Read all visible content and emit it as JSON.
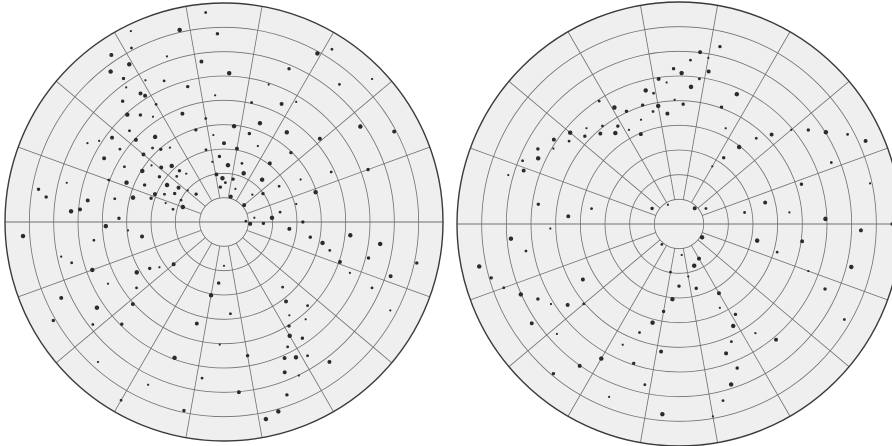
{
  "colors": {
    "background": "#ffffff",
    "disk": "#efefef",
    "grid": "#6f6f6f",
    "outline": "#3a3a3a",
    "point": "#2b2b2b"
  },
  "chart_data": [
    {
      "type": "scatter",
      "projection": "polar",
      "hemisphere": "left",
      "grid": true,
      "rings": 9,
      "meridians": 18,
      "points": [
        [
          128,
          0.28
        ],
        [
          131,
          0.31
        ],
        [
          133,
          0.35
        ],
        [
          136,
          0.3
        ],
        [
          139,
          0.38
        ],
        [
          126,
          0.42
        ],
        [
          131,
          0.44
        ],
        [
          129,
          0.5
        ],
        [
          134,
          0.47
        ],
        [
          137,
          0.55
        ],
        [
          124,
          0.58
        ],
        [
          128,
          0.62
        ],
        [
          132,
          0.66
        ],
        [
          136,
          0.6
        ],
        [
          140,
          0.48
        ],
        [
          142,
          0.42
        ],
        [
          145,
          0.36
        ],
        [
          148,
          0.44
        ],
        [
          151,
          0.52
        ],
        [
          123,
          0.7
        ],
        [
          126,
          0.76
        ],
        [
          130,
          0.72
        ],
        [
          121,
          0.84
        ],
        [
          118,
          0.9
        ],
        [
          124,
          0.92
        ],
        [
          116,
          0.97
        ],
        [
          155,
          0.4
        ],
        [
          158,
          0.48
        ],
        [
          160,
          0.56
        ],
        [
          152,
          0.62
        ],
        [
          147,
          0.68
        ],
        [
          162,
          0.35
        ],
        [
          165,
          0.43
        ],
        [
          168,
          0.51
        ],
        [
          171,
          0.63
        ],
        [
          166,
          0.74
        ],
        [
          172,
          0.82
        ],
        [
          176,
          0.7
        ],
        [
          120,
          0.62
        ],
        [
          122,
          0.68
        ],
        [
          119,
          0.74
        ],
        [
          125,
          0.8
        ],
        [
          127,
          0.86
        ],
        [
          145,
          0.58
        ],
        [
          143,
          0.64
        ],
        [
          150,
          0.72
        ],
        [
          96,
          0.16
        ],
        [
          92,
          0.2
        ],
        [
          88,
          0.18
        ],
        [
          99,
          0.22
        ],
        [
          101,
          0.28
        ],
        [
          94,
          0.3
        ],
        [
          86,
          0.26
        ],
        [
          104,
          0.34
        ],
        [
          90,
          0.36
        ],
        [
          97,
          0.4
        ],
        [
          107,
          0.44
        ],
        [
          84,
          0.44
        ],
        [
          100,
          0.48
        ],
        [
          111,
          0.53
        ],
        [
          94,
          0.58
        ],
        [
          105,
          0.64
        ],
        [
          88,
          0.68
        ],
        [
          113,
          0.7
        ],
        [
          98,
          0.74
        ],
        [
          109,
          0.8
        ],
        [
          92,
          0.86
        ],
        [
          103,
          0.9
        ],
        [
          95,
          0.96
        ],
        [
          75,
          0.12
        ],
        [
          71,
          0.16
        ],
        [
          78,
          0.2
        ],
        [
          68,
          0.24
        ],
        [
          73,
          0.28
        ],
        [
          80,
          0.34
        ],
        [
          66,
          0.38
        ],
        [
          74,
          0.42
        ],
        [
          70,
          0.48
        ],
        [
          77,
          0.56
        ],
        [
          64,
          0.6
        ],
        [
          72,
          0.66
        ],
        [
          67,
          0.76
        ],
        [
          61,
          0.88
        ],
        [
          58,
          0.93
        ],
        [
          40,
          0.12
        ],
        [
          44,
          0.18
        ],
        [
          36,
          0.22
        ],
        [
          48,
          0.26
        ],
        [
          33,
          0.3
        ],
        [
          52,
          0.34
        ],
        [
          29,
          0.4
        ],
        [
          46,
          0.44
        ],
        [
          55,
          0.5
        ],
        [
          25,
          0.54
        ],
        [
          41,
          0.58
        ],
        [
          59,
          0.64
        ],
        [
          20,
          0.7
        ],
        [
          35,
          0.76
        ],
        [
          50,
          0.82
        ],
        [
          28,
          0.88
        ],
        [
          44,
          0.94
        ],
        [
          -10,
          0.4
        ],
        [
          -12,
          0.46
        ],
        [
          -15,
          0.5
        ],
        [
          -19,
          0.56
        ],
        [
          -22,
          0.62
        ],
        [
          -14,
          0.68
        ],
        [
          -8,
          0.72
        ],
        [
          -24,
          0.74
        ],
        [
          -18,
          0.8
        ],
        [
          -28,
          0.86
        ],
        [
          -12,
          0.9
        ],
        [
          -6,
          0.58
        ],
        [
          2,
          0.1
        ],
        [
          -4,
          0.12
        ],
        [
          8,
          0.14
        ],
        [
          -2,
          0.18
        ],
        [
          5,
          0.22
        ],
        [
          10,
          0.26
        ],
        [
          -6,
          0.3
        ],
        [
          14,
          0.34
        ],
        [
          0,
          0.36
        ],
        [
          18,
          0.44
        ],
        [
          -48,
          0.4
        ],
        [
          -52,
          0.46
        ],
        [
          -55,
          0.52
        ],
        [
          -58,
          0.56
        ],
        [
          -60,
          0.6
        ],
        [
          -63,
          0.64
        ],
        [
          -66,
          0.68
        ],
        [
          -50,
          0.58
        ],
        [
          -56,
          0.64
        ],
        [
          -62,
          0.7
        ],
        [
          -45,
          0.54
        ],
        [
          -68,
          0.74
        ],
        [
          -64,
          0.78
        ],
        [
          -70,
          0.84
        ],
        [
          -74,
          0.9
        ],
        [
          -58,
          0.72
        ],
        [
          -53,
          0.8
        ],
        [
          -90,
          0.2
        ],
        [
          -95,
          0.28
        ],
        [
          -100,
          0.34
        ],
        [
          -86,
          0.42
        ],
        [
          -105,
          0.48
        ],
        [
          -92,
          0.56
        ],
        [
          -80,
          0.62
        ],
        [
          -110,
          0.66
        ],
        [
          -98,
          0.72
        ],
        [
          -85,
          0.78
        ],
        [
          -115,
          0.82
        ],
        [
          -102,
          0.88
        ],
        [
          -78,
          0.92
        ],
        [
          -120,
          0.94
        ],
        [
          -140,
          0.3
        ],
        [
          -145,
          0.36
        ],
        [
          -148,
          0.4
        ],
        [
          -150,
          0.46
        ],
        [
          -143,
          0.5
        ],
        [
          -138,
          0.56
        ],
        [
          -152,
          0.6
        ],
        [
          -135,
          0.66
        ],
        [
          -146,
          0.7
        ],
        [
          -142,
          0.76
        ],
        [
          -155,
          0.82
        ],
        [
          -132,
          0.86
        ],
        [
          -150,
          0.9
        ],
        [
          -160,
          0.64
        ],
        [
          -165,
          0.72
        ],
        [
          -170,
          0.38
        ],
        [
          -175,
          0.44
        ],
        [
          178,
          0.48
        ],
        [
          -178,
          0.54
        ],
        [
          -172,
          0.6
        ],
        [
          175,
          0.66
        ],
        [
          -168,
          0.76
        ],
        [
          170,
          0.86
        ],
        [
          -176,
          0.92
        ],
        [
          155,
          0.3
        ],
        [
          158,
          0.34
        ],
        [
          162,
          0.28
        ],
        [
          150,
          0.26
        ],
        [
          147,
          0.31
        ],
        [
          153,
          0.22
        ],
        [
          143,
          0.26
        ],
        [
          139,
          0.22
        ],
        [
          135,
          0.18
        ],
        [
          160,
          0.2
        ],
        [
          166,
          0.24
        ]
      ]
    },
    {
      "type": "scatter",
      "projection": "polar",
      "hemisphere": "right",
      "grid": true,
      "rings": 9,
      "meridians": 18,
      "points": [
        [
          118,
          0.48
        ],
        [
          122,
          0.52
        ],
        [
          125,
          0.5
        ],
        [
          128,
          0.56
        ],
        [
          131,
          0.54
        ],
        [
          134,
          0.6
        ],
        [
          137,
          0.58
        ],
        [
          140,
          0.64
        ],
        [
          143,
          0.62
        ],
        [
          146,
          0.68
        ],
        [
          149,
          0.66
        ],
        [
          152,
          0.72
        ],
        [
          155,
          0.7
        ],
        [
          158,
          0.76
        ],
        [
          161,
          0.74
        ],
        [
          164,
          0.8
        ],
        [
          115,
          0.56
        ],
        [
          119,
          0.6
        ],
        [
          123,
          0.66
        ],
        [
          113,
          0.44
        ],
        [
          110,
          0.5
        ],
        [
          107,
          0.56
        ],
        [
          104,
          0.62
        ],
        [
          101,
          0.6
        ],
        [
          98,
          0.66
        ],
        [
          95,
          0.64
        ],
        [
          92,
          0.7
        ],
        [
          89,
          0.68
        ],
        [
          86,
          0.74
        ],
        [
          83,
          0.78
        ],
        [
          80,
          0.76
        ],
        [
          77,
          0.82
        ],
        [
          100,
          0.54
        ],
        [
          103,
          0.52
        ],
        [
          96,
          0.5
        ],
        [
          92,
          0.56
        ],
        [
          88,
          0.54
        ],
        [
          85,
          0.62
        ],
        [
          82,
          0.66
        ],
        [
          79,
          0.7
        ],
        [
          60,
          0.3
        ],
        [
          56,
          0.36
        ],
        [
          52,
          0.44
        ],
        [
          48,
          0.52
        ],
        [
          44,
          0.58
        ],
        [
          40,
          0.66
        ],
        [
          36,
          0.72
        ],
        [
          32,
          0.78
        ],
        [
          28,
          0.86
        ],
        [
          24,
          0.92
        ],
        [
          64,
          0.48
        ],
        [
          70,
          0.56
        ],
        [
          66,
          0.64
        ],
        [
          10,
          0.3
        ],
        [
          14,
          0.4
        ],
        [
          6,
          0.5
        ],
        [
          18,
          0.58
        ],
        [
          2,
          0.66
        ],
        [
          22,
          0.74
        ],
        [
          -2,
          0.82
        ],
        [
          12,
          0.88
        ],
        [
          0,
          0.96
        ],
        [
          -12,
          0.36
        ],
        [
          -16,
          0.46
        ],
        [
          -8,
          0.56
        ],
        [
          -20,
          0.62
        ],
        [
          -24,
          0.72
        ],
        [
          -14,
          0.8
        ],
        [
          -30,
          0.86
        ],
        [
          -60,
          0.36
        ],
        [
          -64,
          0.42
        ],
        [
          -58,
          0.48
        ],
        [
          -62,
          0.52
        ],
        [
          -66,
          0.58
        ],
        [
          -70,
          0.62
        ],
        [
          -55,
          0.6
        ],
        [
          -68,
          0.7
        ],
        [
          -72,
          0.76
        ],
        [
          -76,
          0.82
        ],
        [
          -50,
          0.68
        ],
        [
          -80,
          0.88
        ],
        [
          -100,
          0.4
        ],
        [
          -105,
          0.46
        ],
        [
          -110,
          0.52
        ],
        [
          -98,
          0.58
        ],
        [
          -115,
          0.6
        ],
        [
          -108,
          0.66
        ],
        [
          -120,
          0.7
        ],
        [
          -102,
          0.74
        ],
        [
          -125,
          0.78
        ],
        [
          -112,
          0.84
        ],
        [
          -130,
          0.88
        ],
        [
          -95,
          0.86
        ],
        [
          -140,
          0.56
        ],
        [
          -144,
          0.62
        ],
        [
          -148,
          0.68
        ],
        [
          -152,
          0.72
        ],
        [
          -156,
          0.78
        ],
        [
          -160,
          0.84
        ],
        [
          -146,
          0.8
        ],
        [
          -138,
          0.74
        ],
        [
          -164,
          0.88
        ],
        [
          -168,
          0.92
        ],
        [
          -170,
          0.7
        ],
        [
          -150,
          0.5
        ],
        [
          -80,
          0.24
        ],
        [
          -90,
          0.28
        ],
        [
          -70,
          0.2
        ],
        [
          -100,
          0.22
        ],
        [
          -60,
          0.18
        ],
        [
          -85,
          0.14
        ],
        [
          -75,
          0.3
        ],
        [
          -95,
          0.34
        ],
        [
          170,
          0.4
        ],
        [
          176,
          0.5
        ],
        [
          -178,
          0.58
        ],
        [
          172,
          0.64
        ],
        [
          -175,
          0.76
        ],
        [
          30,
          0.14
        ],
        [
          45,
          0.1
        ],
        [
          120,
          0.1
        ],
        [
          150,
          0.14
        ],
        [
          -30,
          0.12
        ],
        [
          -130,
          0.12
        ]
      ]
    }
  ]
}
